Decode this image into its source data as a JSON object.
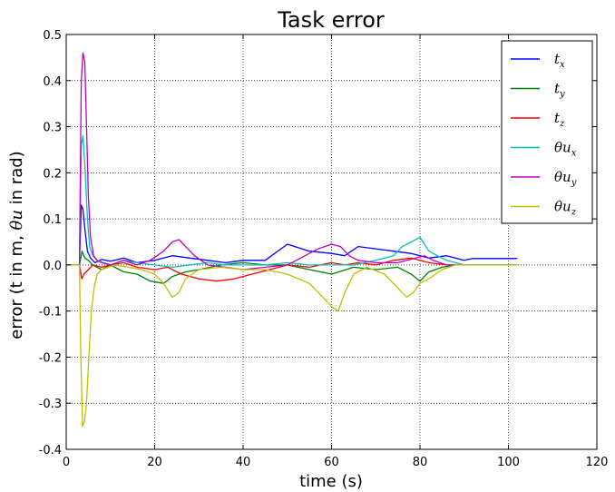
{
  "chart_data": {
    "type": "line",
    "title": "Task error",
    "xlabel": "time (s)",
    "ylabel_parts": [
      "error (t in m, ",
      "θu",
      " in rad)"
    ],
    "xlim": [
      0,
      120
    ],
    "ylim": [
      -0.4,
      0.5
    ],
    "xticks": [
      "0",
      "20",
      "40",
      "60",
      "80",
      "100",
      "120"
    ],
    "yticks": [
      "-0.4",
      "-0.3",
      "-0.2",
      "-0.1",
      "0.0",
      "0.1",
      "0.2",
      "0.3",
      "0.4",
      "0.5"
    ],
    "grid": true,
    "legend_position": "top-right",
    "series": [
      {
        "name": "t",
        "sub": "x",
        "color": "#0000ff",
        "x": [
          0,
          3,
          3.4,
          3.8,
          4.3,
          4.8,
          5.5,
          6.5,
          8,
          10,
          13,
          16,
          20,
          24,
          28,
          32,
          36,
          40,
          45,
          50,
          55,
          60,
          63,
          66,
          70,
          74,
          78,
          82,
          86,
          90,
          92,
          102
        ],
        "y": [
          0,
          0,
          0.13,
          0.12,
          0.07,
          0.03,
          0.015,
          0.005,
          0.012,
          0.008,
          0.015,
          0.005,
          0.01,
          0.02,
          0.015,
          0.01,
          0.005,
          0.01,
          0.01,
          0.045,
          0.03,
          0.025,
          0.02,
          0.04,
          0.035,
          0.03,
          0.025,
          0.015,
          0.02,
          0.01,
          0.014,
          0.014
        ]
      },
      {
        "name": "t",
        "sub": "y",
        "color": "#008000",
        "x": [
          0,
          3,
          3.6,
          4.2,
          5,
          6,
          8,
          10,
          13,
          16,
          19,
          22,
          24,
          27,
          30,
          35,
          40,
          45,
          50,
          55,
          60,
          65,
          70,
          75,
          78,
          80,
          82,
          85,
          88,
          90,
          102
        ],
        "y": [
          0,
          0,
          0.03,
          0.015,
          0.01,
          0.0,
          -0.01,
          0.0,
          -0.015,
          -0.02,
          -0.035,
          -0.04,
          -0.025,
          -0.015,
          -0.01,
          0.0,
          0.005,
          0.0,
          0.0,
          -0.01,
          -0.02,
          -0.005,
          -0.01,
          -0.005,
          -0.02,
          -0.035,
          -0.015,
          -0.005,
          0.0,
          0.0,
          0.0
        ]
      },
      {
        "name": "t",
        "sub": "z",
        "color": "#ff0000",
        "x": [
          0,
          3,
          3.5,
          4,
          5,
          6,
          8,
          10,
          13,
          16,
          20,
          23,
          26,
          30,
          34,
          38,
          42,
          46,
          50,
          55,
          60,
          63,
          66,
          70,
          74,
          78,
          82,
          86,
          90,
          102
        ],
        "y": [
          0,
          0,
          -0.03,
          -0.02,
          -0.01,
          0.0,
          -0.005,
          0.0,
          0.005,
          -0.005,
          -0.01,
          -0.005,
          -0.02,
          -0.03,
          -0.035,
          -0.03,
          -0.02,
          -0.01,
          0.0,
          -0.005,
          0.005,
          0.0,
          0.005,
          0.0,
          0.01,
          0.015,
          0.005,
          0.0,
          0.0,
          0.0
        ]
      },
      {
        "name": "θu",
        "sub": "x",
        "color": "#00bfbf",
        "x": [
          0,
          3,
          3.4,
          3.8,
          4.3,
          4.8,
          5.3,
          6,
          7,
          8.5,
          10,
          13,
          16,
          20,
          24,
          28,
          32,
          36,
          40,
          45,
          50,
          55,
          60,
          65,
          70,
          74,
          76,
          78,
          80,
          82,
          86,
          90,
          102
        ],
        "y": [
          0,
          0,
          0.26,
          0.28,
          0.2,
          0.1,
          0.04,
          0.02,
          0.01,
          0.005,
          0.0,
          0.01,
          0.005,
          0.0,
          -0.005,
          0.0,
          0.005,
          0.0,
          0.0,
          0.0,
          0.005,
          0.0,
          0.0,
          0.0,
          0.01,
          0.02,
          0.04,
          0.05,
          0.06,
          0.03,
          0.01,
          0.0,
          0.0
        ]
      },
      {
        "name": "θu",
        "sub": "y",
        "color": "#bf00bf",
        "x": [
          0,
          3,
          3.4,
          3.8,
          4.2,
          4.6,
          5,
          5.5,
          6.2,
          7,
          8,
          10,
          13,
          16,
          19,
          22,
          24,
          25.5,
          27,
          29,
          32,
          36,
          40,
          45,
          50,
          54,
          57,
          60,
          62,
          64,
          66,
          70,
          75,
          79,
          81,
          83,
          86,
          90
        ],
        "y": [
          0,
          0,
          0.4,
          0.46,
          0.44,
          0.3,
          0.15,
          0.06,
          0.02,
          0.01,
          0.005,
          0.0,
          0.01,
          0.0,
          0.01,
          0.03,
          0.05,
          0.055,
          0.04,
          0.02,
          0.0,
          -0.005,
          -0.01,
          -0.005,
          0.0,
          0.02,
          0.035,
          0.045,
          0.04,
          0.02,
          0.01,
          0.005,
          0.005,
          0.015,
          0.02,
          0.01,
          0.0,
          0.0
        ]
      },
      {
        "name": "θu",
        "sub": "z",
        "color": "#bfbf00",
        "x": [
          0,
          3,
          3.3,
          3.7,
          4.1,
          4.6,
          5.1,
          5.7,
          6.3,
          7,
          8,
          9.5,
          11,
          14,
          17,
          20,
          22,
          24,
          25.5,
          27,
          30,
          35,
          40,
          45,
          50,
          55,
          58,
          60,
          61.5,
          63,
          65,
          68,
          72,
          75,
          77,
          78.5,
          80,
          82,
          85,
          88,
          90,
          102
        ],
        "y": [
          0,
          0,
          -0.2,
          -0.35,
          -0.34,
          -0.3,
          -0.2,
          -0.1,
          -0.05,
          -0.02,
          -0.01,
          -0.005,
          0.0,
          -0.005,
          -0.01,
          -0.02,
          -0.04,
          -0.07,
          -0.06,
          -0.03,
          -0.01,
          -0.005,
          -0.01,
          -0.01,
          -0.02,
          -0.04,
          -0.07,
          -0.09,
          -0.1,
          -0.06,
          -0.02,
          -0.005,
          -0.02,
          -0.05,
          -0.07,
          -0.06,
          -0.04,
          -0.03,
          -0.01,
          0.0,
          0.0,
          0.0
        ]
      }
    ]
  }
}
